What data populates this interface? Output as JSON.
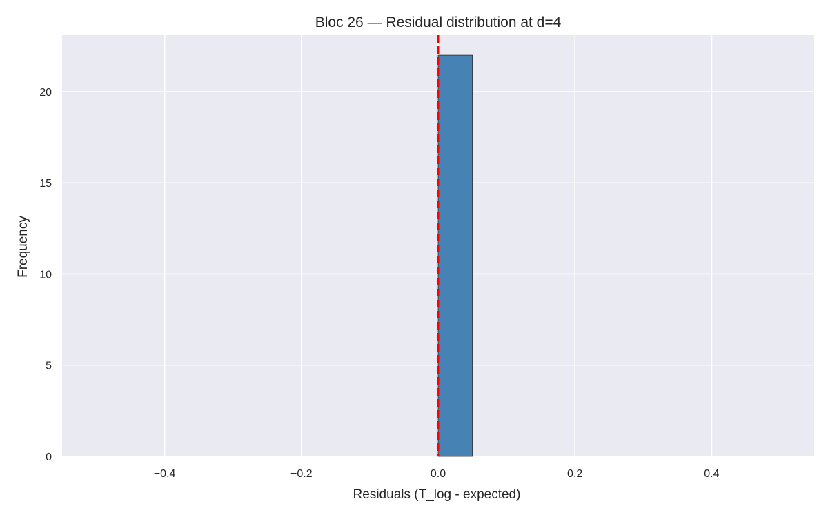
{
  "chart_data": {
    "type": "bar",
    "title": "Bloc 26 — Residual distribution at d=4",
    "xlabel": "Residuals (T_log - expected)",
    "ylabel": "Frequency",
    "xlim": [
      -0.55,
      0.55
    ],
    "ylim": [
      0,
      23.1
    ],
    "xticks": [
      -0.4,
      -0.2,
      0.0,
      0.2,
      0.4
    ],
    "xtick_labels": [
      "−0.4",
      "−0.2",
      "0.0",
      "0.2",
      "0.4"
    ],
    "yticks": [
      0,
      5,
      10,
      15,
      20
    ],
    "ytick_labels": [
      "0",
      "5",
      "10",
      "15",
      "20"
    ],
    "bins": [
      {
        "x_start": 0.0,
        "x_end": 0.05,
        "count": 22
      }
    ],
    "reference_line": {
      "x": 0.0,
      "style": "dashed"
    },
    "grid": true,
    "colors": {
      "bar": "#4682b4",
      "bar_edge": "#2b2b2b",
      "reference_line": "#ff0000",
      "plot_background": "#eaeaf2",
      "grid": "#ffffff"
    }
  }
}
